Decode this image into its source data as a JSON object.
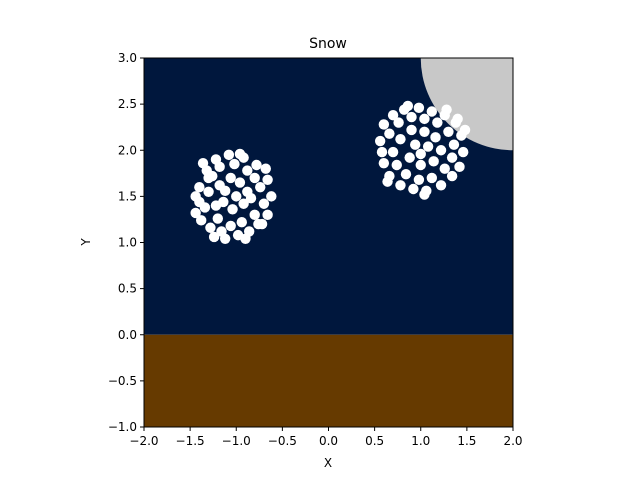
{
  "chart_data": {
    "type": "scatter",
    "title": "Snow",
    "xlabel": "X",
    "ylabel": "Y",
    "xlim": [
      -2.0,
      2.0
    ],
    "ylim": [
      -1.0,
      3.0
    ],
    "xticks": [
      -2.0,
      -1.5,
      -1.0,
      -0.5,
      0.0,
      0.5,
      1.0,
      1.5,
      2.0
    ],
    "yticks": [
      -1.0,
      -0.5,
      0.0,
      0.5,
      1.0,
      1.5,
      2.0,
      2.5,
      3.0
    ],
    "xtick_labels": [
      "−2.0",
      "−1.5",
      "−1.0",
      "−0.5",
      "0.0",
      "0.5",
      "1.0",
      "1.5",
      "2.0"
    ],
    "ytick_labels": [
      "−1.0",
      "−0.5",
      "0.0",
      "0.5",
      "1.0",
      "1.5",
      "2.0",
      "2.5",
      "3.0"
    ],
    "grid": false,
    "regions": {
      "sky": {
        "x": [
          -2.0,
          2.0
        ],
        "y": [
          0.0,
          3.0
        ],
        "color": "#00173d"
      },
      "ground": {
        "x": [
          -2.0,
          2.0
        ],
        "y": [
          -1.0,
          0.0
        ],
        "color": "#663a00"
      }
    },
    "moon": {
      "center": [
        2.0,
        3.0
      ],
      "radius": 1.0,
      "color": "#c8c8c8"
    },
    "snow_color": "#ffffff",
    "snowballs": [
      {
        "center": [
          -1.0,
          1.5
        ],
        "radius": 0.47,
        "points": [
          [
            -1.4,
            1.6
          ],
          [
            -1.32,
            1.78
          ],
          [
            -1.22,
            1.9
          ],
          [
            -1.08,
            1.95
          ],
          [
            -0.92,
            1.92
          ],
          [
            -0.78,
            1.84
          ],
          [
            -0.66,
            1.68
          ],
          [
            -0.62,
            1.5
          ],
          [
            -0.66,
            1.3
          ],
          [
            -0.72,
            1.2
          ],
          [
            -0.86,
            1.12
          ],
          [
            -0.98,
            1.08
          ],
          [
            -1.12,
            1.04
          ],
          [
            -1.28,
            1.16
          ],
          [
            -1.38,
            1.24
          ],
          [
            -1.44,
            1.32
          ],
          [
            -1.44,
            1.5
          ],
          [
            -1.3,
            1.7
          ],
          [
            -1.18,
            1.82
          ],
          [
            -1.02,
            1.85
          ],
          [
            -0.88,
            1.78
          ],
          [
            -0.74,
            1.6
          ],
          [
            -0.7,
            1.42
          ],
          [
            -0.8,
            1.3
          ],
          [
            -0.94,
            1.22
          ],
          [
            -1.06,
            1.18
          ],
          [
            -1.2,
            1.26
          ],
          [
            -1.34,
            1.38
          ],
          [
            -1.3,
            1.55
          ],
          [
            -1.18,
            1.62
          ],
          [
            -1.06,
            1.7
          ],
          [
            -0.96,
            1.65
          ],
          [
            -0.88,
            1.55
          ],
          [
            -0.92,
            1.42
          ],
          [
            -1.04,
            1.36
          ],
          [
            -1.14,
            1.44
          ],
          [
            -1.12,
            1.56
          ],
          [
            -1.0,
            1.5
          ],
          [
            -0.84,
            1.48
          ],
          [
            -1.22,
            1.4
          ],
          [
            -1.26,
            1.72
          ],
          [
            -0.8,
            1.7
          ],
          [
            -0.76,
            1.2
          ],
          [
            -1.16,
            1.12
          ],
          [
            -1.4,
            1.44
          ],
          [
            -0.96,
            1.96
          ],
          [
            -1.36,
            1.86
          ],
          [
            -0.68,
            1.8
          ],
          [
            -0.9,
            1.04
          ],
          [
            -1.24,
            1.06
          ]
        ]
      },
      {
        "center": [
          1.0,
          2.0
        ],
        "radius": 0.47,
        "points": [
          [
            0.56,
            2.1
          ],
          [
            0.6,
            2.28
          ],
          [
            0.7,
            2.38
          ],
          [
            0.82,
            2.44
          ],
          [
            0.98,
            2.46
          ],
          [
            1.12,
            2.42
          ],
          [
            1.26,
            2.38
          ],
          [
            1.38,
            2.3
          ],
          [
            1.44,
            2.16
          ],
          [
            1.46,
            1.98
          ],
          [
            1.42,
            1.82
          ],
          [
            1.34,
            1.72
          ],
          [
            1.22,
            1.62
          ],
          [
            1.06,
            1.56
          ],
          [
            0.92,
            1.58
          ],
          [
            0.78,
            1.62
          ],
          [
            0.66,
            1.72
          ],
          [
            0.6,
            1.86
          ],
          [
            0.58,
            1.98
          ],
          [
            0.66,
            2.18
          ],
          [
            0.76,
            2.3
          ],
          [
            0.9,
            2.36
          ],
          [
            1.04,
            2.34
          ],
          [
            1.18,
            2.3
          ],
          [
            1.3,
            2.2
          ],
          [
            1.36,
            2.06
          ],
          [
            1.34,
            1.92
          ],
          [
            1.26,
            1.8
          ],
          [
            1.12,
            1.7
          ],
          [
            0.98,
            1.68
          ],
          [
            0.84,
            1.74
          ],
          [
            0.74,
            1.84
          ],
          [
            0.7,
            1.98
          ],
          [
            0.78,
            2.12
          ],
          [
            0.9,
            2.22
          ],
          [
            1.04,
            2.2
          ],
          [
            1.16,
            2.14
          ],
          [
            1.22,
            2.0
          ],
          [
            1.14,
            1.88
          ],
          [
            1.0,
            1.84
          ],
          [
            0.88,
            1.92
          ],
          [
            0.94,
            2.06
          ],
          [
            1.08,
            2.04
          ],
          [
            1.0,
            1.96
          ],
          [
            1.28,
            2.44
          ],
          [
            0.64,
            1.66
          ],
          [
            1.48,
            2.22
          ],
          [
            1.4,
            2.34
          ],
          [
            1.04,
            1.52
          ],
          [
            0.86,
            2.48
          ]
        ]
      }
    ]
  }
}
